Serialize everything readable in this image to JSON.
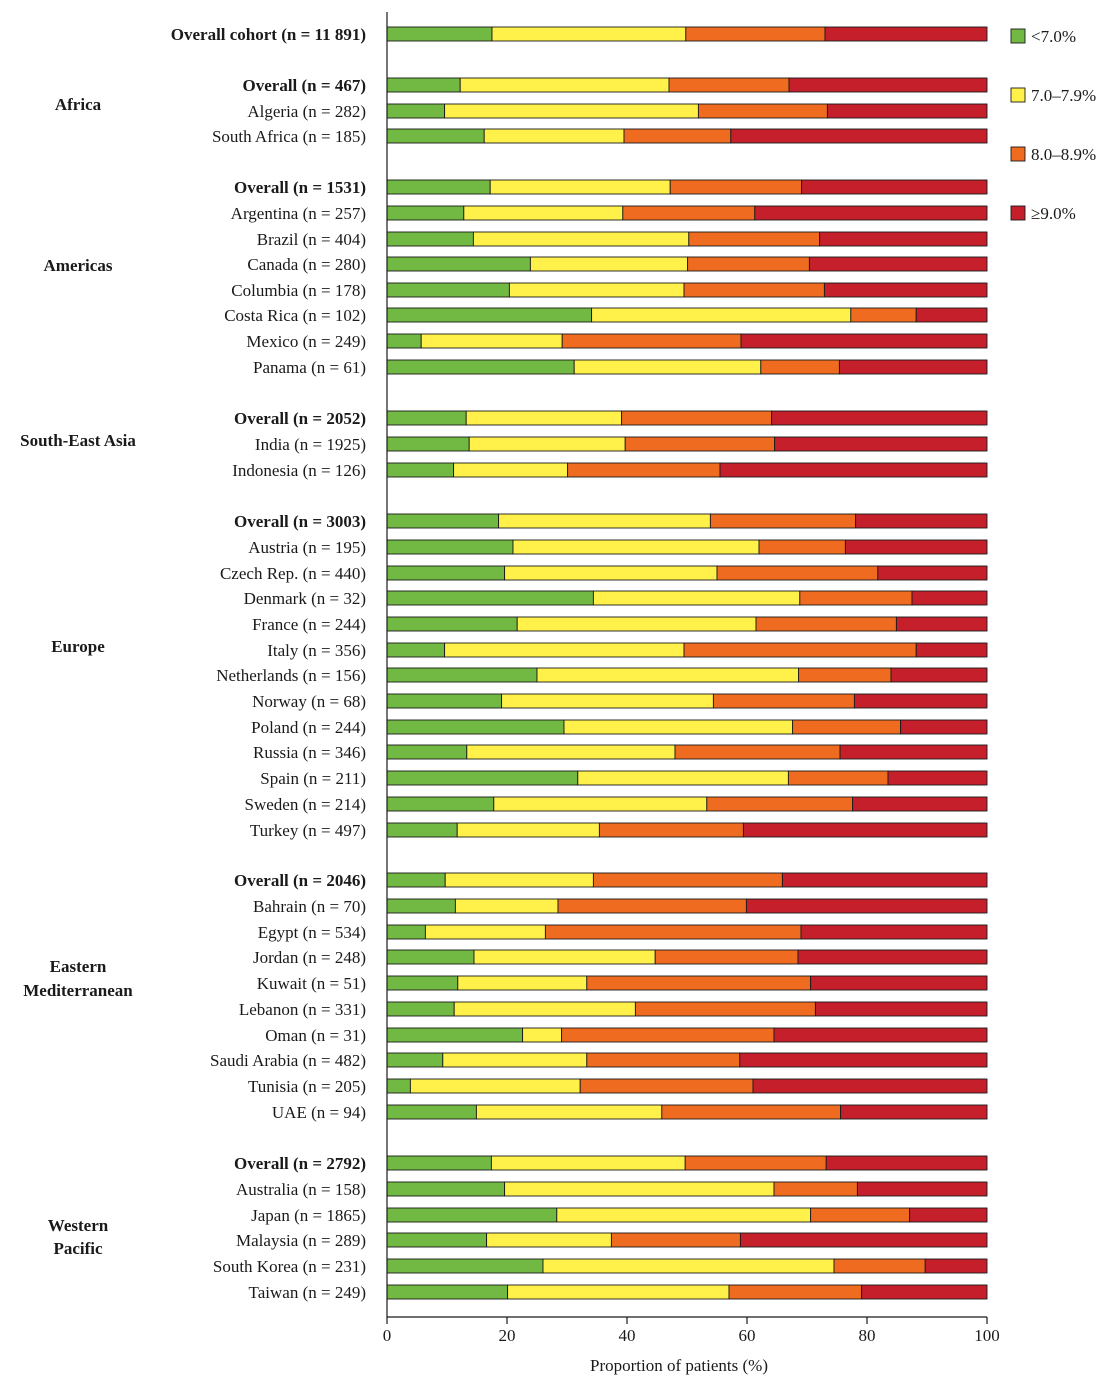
{
  "chart_data": {
    "type": "bar",
    "orientation": "horizontal",
    "stacked": true,
    "xlabel": "Proportion of patients (%)",
    "xlim": [
      0,
      100
    ],
    "xticks": [
      "0",
      "20",
      "40",
      "60",
      "80",
      "100"
    ],
    "grid": false,
    "legend_position": "top-right",
    "series_colors": [
      "#72b944",
      "#fff04a",
      "#ef6b20",
      "#c41f2b"
    ],
    "legend": [
      "<7.0%",
      "7.0–7.9%",
      "8.0–8.9%",
      "≥9.0%"
    ],
    "rows": [
      {
        "group": "",
        "name": "Overall cohort",
        "n": "11 891",
        "overall": true,
        "values": [
          17.5,
          32.3,
          23.2,
          27.0
        ]
      },
      {
        "group": "Africa",
        "name": "Overall",
        "n": "467",
        "overall": true,
        "values": [
          12.2,
          34.8,
          20.0,
          33.0
        ]
      },
      {
        "group": "Africa",
        "name": "Algeria",
        "n": "282",
        "overall": false,
        "values": [
          9.6,
          42.3,
          21.5,
          26.6
        ]
      },
      {
        "group": "Africa",
        "name": "South Africa",
        "n": "185",
        "overall": false,
        "values": [
          16.2,
          23.3,
          17.8,
          42.7
        ]
      },
      {
        "group": "Americas",
        "name": "Overall",
        "n": "1531",
        "overall": true,
        "values": [
          17.2,
          30.0,
          21.9,
          30.9
        ]
      },
      {
        "group": "Americas",
        "name": "Argentina",
        "n": "257",
        "overall": false,
        "values": [
          12.8,
          26.5,
          22.0,
          38.7
        ]
      },
      {
        "group": "Americas",
        "name": "Brazil",
        "n": "404",
        "overall": false,
        "values": [
          14.4,
          35.9,
          21.8,
          27.9
        ]
      },
      {
        "group": "Americas",
        "name": "Canada",
        "n": "280",
        "overall": false,
        "values": [
          23.9,
          26.2,
          20.3,
          29.6
        ]
      },
      {
        "group": "Americas",
        "name": "Columbia",
        "n": "178",
        "overall": false,
        "values": [
          20.4,
          29.1,
          23.4,
          27.1
        ]
      },
      {
        "group": "Americas",
        "name": "Costa Rica",
        "n": "102",
        "overall": false,
        "values": [
          34.1,
          43.2,
          10.9,
          11.8
        ]
      },
      {
        "group": "Americas",
        "name": "Mexico",
        "n": "249",
        "overall": false,
        "values": [
          5.7,
          23.5,
          29.8,
          41.0
        ]
      },
      {
        "group": "Americas",
        "name": "Panama",
        "n": "61",
        "overall": false,
        "values": [
          31.2,
          31.1,
          13.1,
          24.6
        ]
      },
      {
        "group": "South-East Asia",
        "name": "Overall",
        "n": "2052",
        "overall": true,
        "values": [
          13.2,
          25.9,
          25.0,
          35.9
        ]
      },
      {
        "group": "South-East Asia",
        "name": "India",
        "n": "1925",
        "overall": false,
        "values": [
          13.7,
          26.0,
          24.9,
          35.4
        ]
      },
      {
        "group": "South-East Asia",
        "name": "Indonesia",
        "n": "126",
        "overall": false,
        "values": [
          11.1,
          19.0,
          25.4,
          44.5
        ]
      },
      {
        "group": "Europe",
        "name": "Overall",
        "n": "3003",
        "overall": true,
        "values": [
          18.6,
          35.3,
          24.2,
          21.9
        ]
      },
      {
        "group": "Europe",
        "name": "Austria",
        "n": "195",
        "overall": false,
        "values": [
          21.0,
          41.0,
          14.4,
          23.6
        ]
      },
      {
        "group": "Europe",
        "name": "Czech Rep.",
        "n": "440",
        "overall": false,
        "values": [
          19.6,
          35.4,
          26.8,
          18.2
        ]
      },
      {
        "group": "Europe",
        "name": "Denmark",
        "n": "32",
        "overall": false,
        "values": [
          34.4,
          34.4,
          18.7,
          12.5
        ]
      },
      {
        "group": "Europe",
        "name": "France",
        "n": "244",
        "overall": false,
        "values": [
          21.7,
          39.8,
          23.4,
          15.1
        ]
      },
      {
        "group": "Europe",
        "name": "Italy",
        "n": "356",
        "overall": false,
        "values": [
          9.6,
          39.9,
          38.7,
          11.8
        ]
      },
      {
        "group": "Europe",
        "name": "Netherlands",
        "n": "156",
        "overall": false,
        "values": [
          25.0,
          43.6,
          15.4,
          16.0
        ]
      },
      {
        "group": "Europe",
        "name": "Norway",
        "n": "68",
        "overall": false,
        "values": [
          19.1,
          35.3,
          23.5,
          22.1
        ]
      },
      {
        "group": "Europe",
        "name": "Poland",
        "n": "244",
        "overall": false,
        "values": [
          29.5,
          38.1,
          18.0,
          14.4
        ]
      },
      {
        "group": "Europe",
        "name": "Russia",
        "n": "346",
        "overall": false,
        "values": [
          13.3,
          34.7,
          27.5,
          24.5
        ]
      },
      {
        "group": "Europe",
        "name": "Spain",
        "n": "211",
        "overall": false,
        "values": [
          31.8,
          35.1,
          16.6,
          16.5
        ]
      },
      {
        "group": "Europe",
        "name": "Sweden",
        "n": "214",
        "overall": false,
        "values": [
          17.8,
          35.5,
          24.3,
          22.4
        ]
      },
      {
        "group": "Europe",
        "name": "Turkey",
        "n": "497",
        "overall": false,
        "values": [
          11.7,
          23.7,
          24.0,
          40.6
        ]
      },
      {
        "group": "Eastern Mediterranean",
        "name": "Overall",
        "n": "2046",
        "overall": true,
        "values": [
          9.7,
          24.7,
          31.5,
          34.1
        ]
      },
      {
        "group": "Eastern Mediterranean",
        "name": "Bahrain",
        "n": "70",
        "overall": false,
        "values": [
          11.4,
          17.1,
          31.4,
          40.1
        ]
      },
      {
        "group": "Eastern Mediterranean",
        "name": "Egypt",
        "n": "534",
        "overall": false,
        "values": [
          6.4,
          20.0,
          42.6,
          31.0
        ]
      },
      {
        "group": "Eastern Mediterranean",
        "name": "Jordan",
        "n": "248",
        "overall": false,
        "values": [
          14.5,
          30.2,
          23.8,
          31.5
        ]
      },
      {
        "group": "Eastern Mediterranean",
        "name": "Kuwait",
        "n": "51",
        "overall": false,
        "values": [
          11.8,
          21.5,
          37.3,
          29.4
        ]
      },
      {
        "group": "Eastern Mediterranean",
        "name": "Lebanon",
        "n": "331",
        "overall": false,
        "values": [
          11.2,
          30.2,
          30.0,
          28.6
        ]
      },
      {
        "group": "Eastern Mediterranean",
        "name": "Oman",
        "n": "31",
        "overall": false,
        "values": [
          22.6,
          6.5,
          35.4,
          35.5
        ]
      },
      {
        "group": "Eastern Mediterranean",
        "name": "Saudi Arabia",
        "n": "482",
        "overall": false,
        "values": [
          9.3,
          24.0,
          25.5,
          41.2
        ]
      },
      {
        "group": "Eastern Mediterranean",
        "name": "Tunisia",
        "n": "205",
        "overall": false,
        "values": [
          3.9,
          28.3,
          28.8,
          39.0
        ]
      },
      {
        "group": "Eastern Mediterranean",
        "name": "UAE",
        "n": "94",
        "overall": false,
        "values": [
          14.9,
          30.9,
          29.8,
          24.4
        ]
      },
      {
        "group": "Western Pacific",
        "name": "Overall",
        "n": "2792",
        "overall": true,
        "values": [
          17.4,
          32.3,
          23.5,
          26.8
        ]
      },
      {
        "group": "Western Pacific",
        "name": "Australia",
        "n": "158",
        "overall": false,
        "values": [
          19.6,
          44.9,
          13.9,
          21.6
        ]
      },
      {
        "group": "Western Pacific",
        "name": "Japan",
        "n": "1865",
        "overall": false,
        "values": [
          28.3,
          42.3,
          16.5,
          12.9
        ]
      },
      {
        "group": "Western Pacific",
        "name": "Malaysia",
        "n": "289",
        "overall": false,
        "values": [
          16.6,
          20.8,
          21.5,
          41.1
        ]
      },
      {
        "group": "Western Pacific",
        "name": "South Korea",
        "n": "231",
        "overall": false,
        "values": [
          26.0,
          48.5,
          15.2,
          10.3
        ]
      },
      {
        "group": "Western Pacific",
        "name": "Taiwan",
        "n": "249",
        "overall": false,
        "values": [
          20.1,
          36.9,
          22.1,
          20.9
        ]
      }
    ],
    "groups": [
      {
        "key": "Africa",
        "lines": [
          "Africa"
        ]
      },
      {
        "key": "Americas",
        "lines": [
          "Americas"
        ]
      },
      {
        "key": "South-East Asia",
        "lines": [
          "South-East Asia"
        ]
      },
      {
        "key": "Europe",
        "lines": [
          "Europe"
        ]
      },
      {
        "key": "Eastern Mediterranean",
        "lines": [
          "Eastern",
          "Mediterranean"
        ]
      },
      {
        "key": "Western Pacific",
        "lines": [
          "Western",
          "Pacific"
        ]
      }
    ]
  }
}
